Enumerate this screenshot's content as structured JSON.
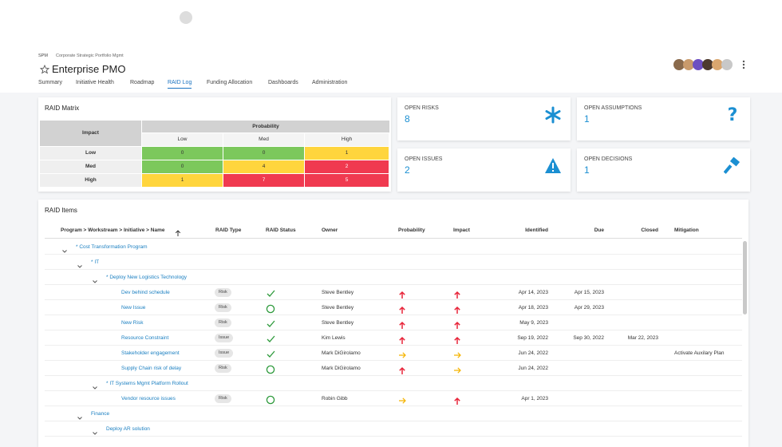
{
  "breadcrumb": [
    "SPM",
    "Corporate Strategic Portfolio Mgmt"
  ],
  "title": "Enterprise PMO",
  "tabs": [
    "Summary",
    "Initiative Health",
    "Roadmap",
    "RAID Log",
    "Funding Allocation",
    "Dashboards",
    "Administration"
  ],
  "active_tab": 3,
  "raid_matrix": {
    "title": "RAID Matrix",
    "row_header": "Impact",
    "column_header": "Probability",
    "columns": [
      "Low",
      "Med",
      "High"
    ],
    "rows": [
      {
        "label": "Low",
        "values": [
          0,
          0,
          1
        ],
        "colors": [
          "#7cc85c",
          "#7cc85c",
          "#ffd53d"
        ]
      },
      {
        "label": "Med",
        "values": [
          0,
          4,
          2
        ],
        "colors": [
          "#7cc85c",
          "#ffd53d",
          "#f03a50"
        ]
      },
      {
        "label": "High",
        "values": [
          1,
          7,
          5
        ],
        "colors": [
          "#ffd53d",
          "#f03a50",
          "#f03a50"
        ]
      }
    ]
  },
  "cards": [
    {
      "label": "OPEN RISKS",
      "value": 8
    },
    {
      "label": "OPEN ASSUMPTIONS",
      "value": 1
    },
    {
      "label": "OPEN ISSUES",
      "value": 2
    },
    {
      "label": "OPEN DECISIONS",
      "value": 1
    }
  ],
  "raid_items": {
    "title": "RAID Items",
    "columns": [
      "Program > Workstream > Initiative > Name",
      "RAID Type",
      "RAID Status",
      "Owner",
      "Probability",
      "Impact",
      "Identified",
      "Due",
      "Closed",
      "Mitigation"
    ],
    "rows": [
      {
        "level": 0,
        "name": "* Cost Transformation Program"
      },
      {
        "level": 1,
        "name": "* IT"
      },
      {
        "level": 2,
        "name": "* Deploy New Logistics Technology"
      },
      {
        "level": 3,
        "name": "Dev behind schedule",
        "type": "Risk",
        "status": "done",
        "owner": "Steve Bentley",
        "probability": "high",
        "impact": "high",
        "identified": "Apr 14, 2023",
        "due": "Apr 15, 2023"
      },
      {
        "level": 3,
        "name": "New Issue",
        "type": "Risk",
        "status": "open",
        "owner": "Steve Bentley",
        "probability": "high",
        "impact": "high",
        "identified": "Apr 18, 2023",
        "due": "Apr 29, 2023"
      },
      {
        "level": 3,
        "name": "New Risk",
        "type": "Risk",
        "status": "done",
        "owner": "Steve Bentley",
        "probability": "high",
        "impact": "high",
        "identified": "May 9, 2023"
      },
      {
        "level": 3,
        "name": "Resource Constraint",
        "type": "Issue",
        "status": "done",
        "owner": "Kim Lewis",
        "probability": "high",
        "impact": "high",
        "identified": "Sep 19, 2022",
        "due": "Sep 30, 2022",
        "closed": "Mar 22, 2023"
      },
      {
        "level": 3,
        "name": "Stakeholder engagement",
        "type": "Issue",
        "status": "done",
        "owner": "Mark DiGirolamo",
        "probability": "medium",
        "impact": "medium",
        "identified": "Jun 24, 2022",
        "mitigation": "Activate Auxilary Plan"
      },
      {
        "level": 3,
        "name": "Supply Chain risk of delay",
        "type": "Risk",
        "status": "open",
        "owner": "Mark DiGirolamo",
        "probability": "high",
        "impact": "medium",
        "identified": "Jun 24, 2022"
      },
      {
        "level": 2,
        "name": "* IT Systems Mgmt Platform Rollout"
      },
      {
        "level": 3,
        "name": "Vendor resource issues",
        "type": "Risk",
        "status": "open",
        "owner": "Robin Gibb",
        "probability": "medium",
        "impact": "high",
        "identified": "Apr 1, 2023"
      },
      {
        "level": 1,
        "name": "Finance"
      },
      {
        "level": 2,
        "name": "Deploy AR solution"
      }
    ]
  }
}
